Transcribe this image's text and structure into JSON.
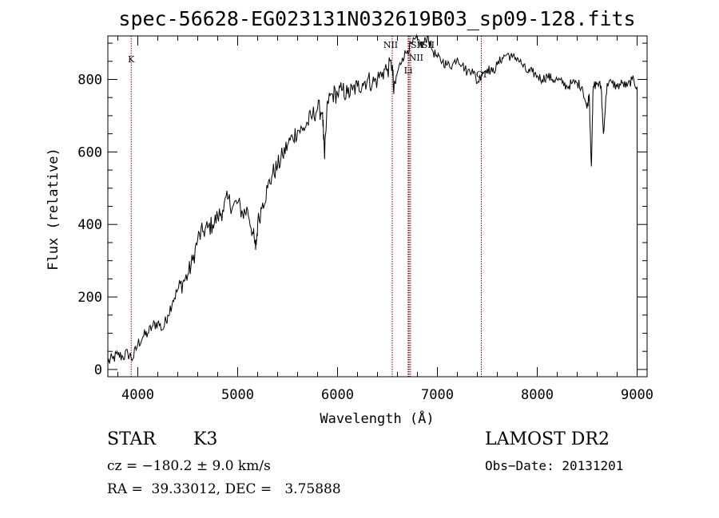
{
  "chart_data": {
    "type": "line",
    "title": "spec-56628-EG023131N032619B03_sp09-128.fits",
    "xlabel": "Wavelength (Å)",
    "ylabel": "Flux (relative)",
    "xlim": [
      3700,
      9100
    ],
    "ylim": [
      -20,
      920
    ],
    "x_ticks": [
      4000,
      5000,
      6000,
      7000,
      8000,
      9000
    ],
    "y_ticks": [
      0,
      200,
      400,
      600,
      800
    ],
    "grid": false,
    "line_color": "#000000",
    "marker_color": "#8b0000",
    "lines": [
      {
        "label": "K",
        "x": 3934
      },
      {
        "label": "NII",
        "x": 6548
      },
      {
        "label": "SII",
        "x": 6717
      },
      {
        "label": "NII",
        "x": 6707
      },
      {
        "label": "Li",
        "x": 6708
      },
      {
        "label": "SII",
        "x": 6731
      },
      {
        "label": "OI",
        "x": 7440
      }
    ],
    "series": [
      {
        "x": [
          3700,
          3750,
          3800,
          3850,
          3900,
          3950,
          4000,
          4050,
          4100,
          4150,
          4200,
          4250,
          4300,
          4350,
          4400,
          4450,
          4500,
          4550,
          4600,
          4650,
          4700,
          4750,
          4800,
          4850,
          4900,
          4950,
          5000,
          5050,
          5100,
          5150,
          5180,
          5200,
          5250,
          5300,
          5350,
          5400,
          5450,
          5500,
          5550,
          5600,
          5650,
          5700,
          5750,
          5800,
          5850,
          5870,
          5900,
          5950,
          6000,
          6050,
          6100,
          6150,
          6200,
          6250,
          6300,
          6350,
          6400,
          6450,
          6500,
          6550,
          6563,
          6600,
          6650,
          6700,
          6750,
          6800,
          6850,
          6900,
          6950,
          7000,
          7050,
          7100,
          7150,
          7200,
          7250,
          7300,
          7350,
          7400,
          7450,
          7500,
          7550,
          7600,
          7650,
          7700,
          7750,
          7800,
          7850,
          7900,
          7950,
          8000,
          8050,
          8100,
          8150,
          8200,
          8250,
          8300,
          8350,
          8400,
          8450,
          8498,
          8520,
          8542,
          8560,
          8600,
          8640,
          8662,
          8700,
          8750,
          8800,
          8850,
          8900,
          8950,
          9000
        ],
        "y": [
          20,
          30,
          40,
          35,
          45,
          30,
          70,
          90,
          100,
          120,
          130,
          110,
          150,
          190,
          220,
          240,
          260,
          300,
          360,
          380,
          390,
          400,
          420,
          440,
          470,
          450,
          460,
          430,
          440,
          380,
          330,
          400,
          460,
          500,
          540,
          560,
          590,
          620,
          640,
          660,
          660,
          680,
          700,
          720,
          710,
          580,
          740,
          760,
          760,
          770,
          760,
          770,
          780,
          790,
          800,
          790,
          800,
          820,
          830,
          840,
          760,
          820,
          860,
          880,
          900,
          910,
          890,
          920,
          880,
          860,
          850,
          840,
          840,
          860,
          840,
          820,
          830,
          790,
          820,
          830,
          820,
          840,
          860,
          870,
          860,
          860,
          840,
          820,
          820,
          810,
          800,
          810,
          800,
          800,
          790,
          780,
          790,
          790,
          780,
          720,
          760,
          560,
          780,
          790,
          780,
          650,
          790,
          790,
          780,
          790,
          780,
          800,
          780
        ]
      }
    ],
    "info": {
      "object_class": "STAR",
      "subclass": "K3",
      "survey": "LAMOST DR2",
      "cz": "cz = −180.2 ± 9.0 km/s",
      "obs_date": "Obs−Date: 20131201",
      "coords": "RA =  39.33012, DEC =   3.75888"
    }
  }
}
